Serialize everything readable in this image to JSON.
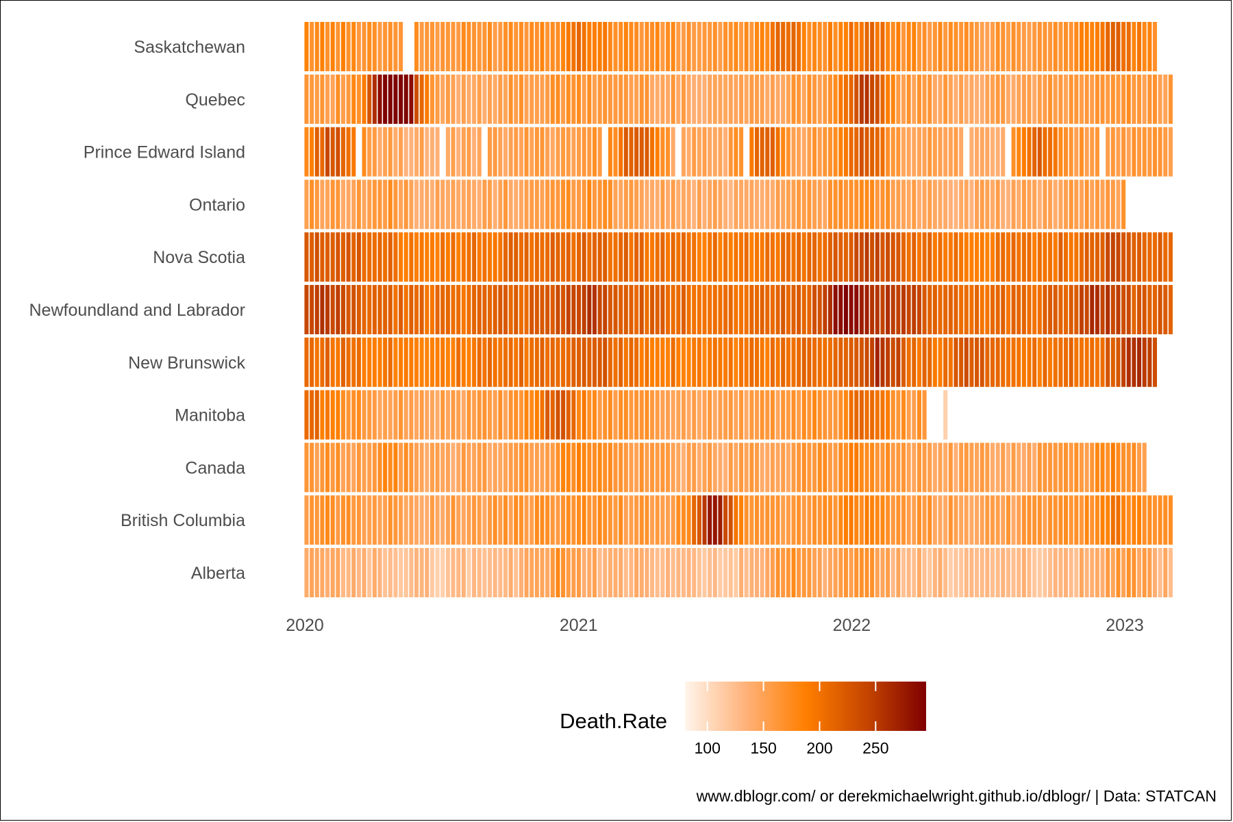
{
  "chart_data": {
    "type": "heatmap",
    "title": "",
    "xlabel": "",
    "ylabel": "",
    "x_axis": {
      "type": "date",
      "ticks": [
        "2020",
        "2021",
        "2022",
        "2023"
      ],
      "range": [
        "2020-01-01",
        "2023-03-06"
      ],
      "period": "week"
    },
    "legend": {
      "title": "Death.Rate",
      "position": "bottom",
      "range": [
        80,
        295
      ],
      "ticks": [
        100,
        150,
        200,
        250
      ],
      "colors": [
        "#fff5eb",
        "#ffb27a",
        "#ff7f00",
        "#c64600",
        "#7f0000"
      ]
    },
    "caption": "www.dblogr.com/ or derekmichaelwright.github.io/dblogr/ | Data: STATCAN",
    "grid": false,
    "series": [
      {
        "name": "Saskatchewan",
        "start": "2020-01-04",
        "end": "2023-02-11",
        "base": 170,
        "peaks": [
          {
            "date": "2021-01-09",
            "value": 195
          },
          {
            "date": "2021-10-02",
            "value": 205
          },
          {
            "date": "2022-01-22",
            "value": 200
          },
          {
            "date": "2022-12-17",
            "value": 200
          }
        ],
        "gaps": [
          "2020-05-16",
          "2020-05-23"
        ]
      },
      {
        "name": "Quebec",
        "start": "2020-01-04",
        "end": "2023-03-04",
        "base": 155,
        "peaks": [
          {
            "date": "2020-04-25",
            "value": 230
          },
          {
            "date": "2020-05-02",
            "value": 240
          },
          {
            "date": "2020-05-09",
            "value": 215
          },
          {
            "date": "2022-01-15",
            "value": 200
          },
          {
            "date": "2022-01-22",
            "value": 195
          }
        ],
        "gaps": []
      },
      {
        "name": "Prince Edward Island",
        "start": "2020-01-04",
        "end": "2023-03-04",
        "base": 150,
        "peaks": [
          {
            "date": "2020-02-08",
            "value": 230
          },
          {
            "date": "2021-03-20",
            "value": 225
          },
          {
            "date": "2021-09-04",
            "value": 220
          },
          {
            "date": "2022-01-22",
            "value": 215
          },
          {
            "date": "2022-09-10",
            "value": 220
          }
        ],
        "gaps": [
          "2020-03-14",
          "2020-07-04",
          "2020-08-29",
          "2021-02-06",
          "2021-05-15",
          "2021-08-14",
          "2022-06-04",
          "2022-07-30",
          "2022-12-03"
        ]
      },
      {
        "name": "Ontario",
        "start": "2020-01-04",
        "end": "2022-12-31",
        "base": 150,
        "peaks": [
          {
            "date": "2020-04-25",
            "value": 165
          },
          {
            "date": "2021-01-16",
            "value": 165
          },
          {
            "date": "2022-01-22",
            "value": 165
          }
        ],
        "gaps": []
      },
      {
        "name": "Nova Scotia",
        "start": "2020-01-04",
        "end": "2023-03-04",
        "base": 205,
        "peaks": [
          {
            "date": "2020-02-15",
            "value": 225
          },
          {
            "date": "2022-01-29",
            "value": 240
          },
          {
            "date": "2022-12-24",
            "value": 225
          }
        ],
        "gaps": []
      },
      {
        "name": "Newfoundland and Labrador",
        "start": "2020-01-04",
        "end": "2023-03-04",
        "base": 215,
        "peaks": [
          {
            "date": "2020-02-01",
            "value": 240
          },
          {
            "date": "2021-01-09",
            "value": 245
          },
          {
            "date": "2021-12-25",
            "value": 290
          },
          {
            "date": "2022-03-05",
            "value": 250
          },
          {
            "date": "2022-11-26",
            "value": 250
          }
        ],
        "gaps": []
      },
      {
        "name": "New Brunswick",
        "start": "2020-01-04",
        "end": "2023-02-11",
        "base": 200,
        "peaks": [
          {
            "date": "2021-01-16",
            "value": 220
          },
          {
            "date": "2022-02-12",
            "value": 255
          },
          {
            "date": "2022-06-11",
            "value": 235
          },
          {
            "date": "2023-01-14",
            "value": 250
          }
        ],
        "gaps": []
      },
      {
        "name": "Manitoba",
        "start": "2020-01-04",
        "end": "2022-04-09",
        "base": 160,
        "peaks": [
          {
            "date": "2020-01-11",
            "value": 200
          },
          {
            "date": "2020-12-05",
            "value": 215
          },
          {
            "date": "2022-01-22",
            "value": 200
          }
        ],
        "extra_cells": [
          {
            "date": "2022-05-07",
            "value": 110
          }
        ],
        "gaps": []
      },
      {
        "name": "Canada",
        "start": "2020-01-04",
        "end": "2023-01-28",
        "base": 155,
        "peaks": [
          {
            "date": "2020-04-25",
            "value": 175
          },
          {
            "date": "2021-01-09",
            "value": 175
          },
          {
            "date": "2022-01-15",
            "value": 175
          },
          {
            "date": "2022-12-17",
            "value": 175
          }
        ],
        "gaps": []
      },
      {
        "name": "British Columbia",
        "start": "2020-01-04",
        "end": "2023-03-04",
        "base": 160,
        "peaks": [
          {
            "date": "2021-07-03",
            "value": 280
          },
          {
            "date": "2022-01-08",
            "value": 175
          },
          {
            "date": "2022-12-24",
            "value": 185
          }
        ],
        "gaps": []
      },
      {
        "name": "Alberta",
        "start": "2020-01-04",
        "end": "2023-03-04",
        "base": 130,
        "peaks": [
          {
            "date": "2020-12-12",
            "value": 160
          },
          {
            "date": "2021-10-09",
            "value": 165
          },
          {
            "date": "2022-01-15",
            "value": 160
          },
          {
            "date": "2022-12-31",
            "value": 155
          }
        ],
        "gaps": []
      }
    ]
  }
}
